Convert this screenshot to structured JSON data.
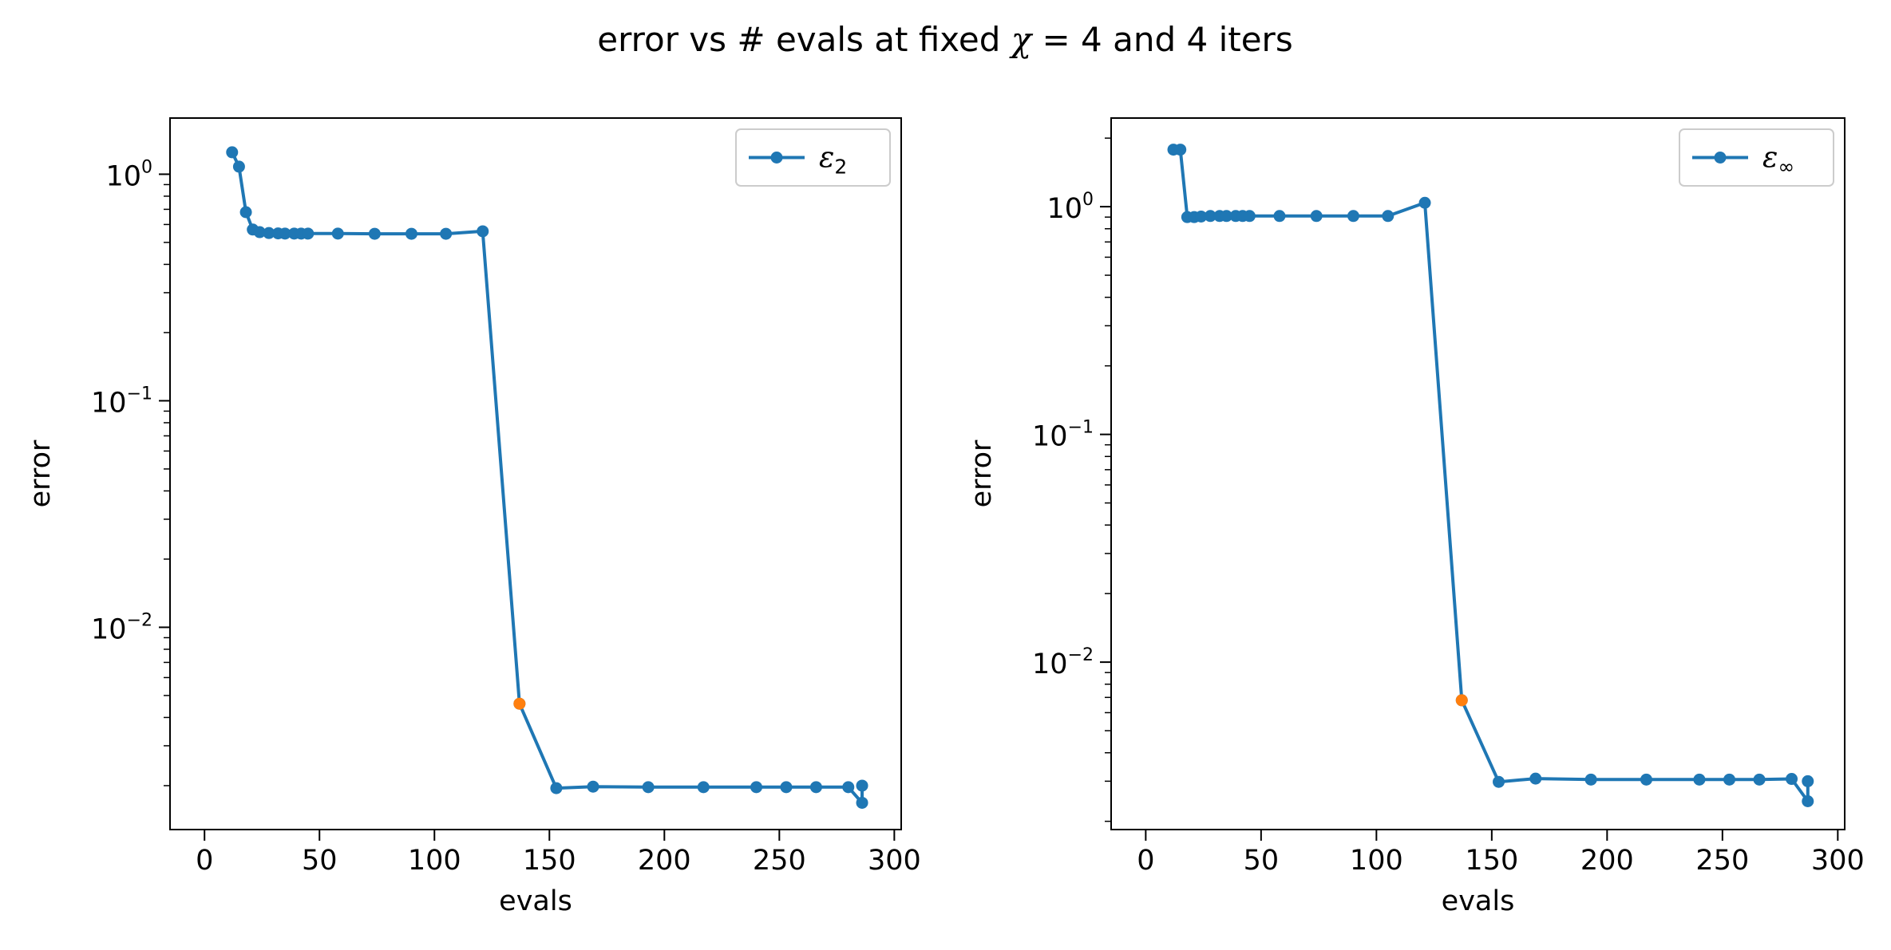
{
  "figure": {
    "title_main": "error vs # evals at fixed ",
    "title_chi": "χ",
    "title_eq": " = 4",
    "title_tail": " and 4 iters"
  },
  "chart_data": [
    {
      "type": "line",
      "xlabel": "evals",
      "ylabel": "error",
      "yscale": "log",
      "xlim": [
        -15,
        303
      ],
      "ylim": [
        0.00128,
        1.77
      ],
      "xticks": [
        0,
        50,
        100,
        150,
        200,
        250,
        300
      ],
      "xtick_labels": [
        "0",
        "50",
        "100",
        "150",
        "200",
        "250",
        "300"
      ],
      "yticks": [
        1,
        0.1,
        0.01
      ],
      "ytick_labels": [
        {
          "base": "10",
          "exp": "0"
        },
        {
          "base": "10",
          "exp": "−1"
        },
        {
          "base": "10",
          "exp": "−2"
        }
      ],
      "legend": {
        "symbol": "ε",
        "sub": "2",
        "position": "upper right"
      },
      "series": [
        {
          "name": "ε2",
          "color": "#1f77b4",
          "x": [
            12,
            15,
            18,
            21,
            24,
            28,
            32,
            35,
            39,
            42,
            45,
            58,
            74,
            90,
            105,
            121,
            137,
            153,
            169,
            193,
            217,
            240,
            253,
            266,
            280,
            286,
            286
          ],
          "y": [
            1.25,
            1.08,
            0.68,
            0.57,
            0.555,
            0.55,
            0.548,
            0.547,
            0.547,
            0.547,
            0.547,
            0.547,
            0.546,
            0.546,
            0.546,
            0.56,
            0.0046,
            0.00195,
            0.00198,
            0.00197,
            0.00197,
            0.00197,
            0.00197,
            0.00197,
            0.00197,
            0.00168,
            0.002
          ]
        },
        {
          "name": "highlight",
          "color": "#ff7f0e",
          "x": [
            137
          ],
          "y": [
            0.0046
          ]
        }
      ]
    },
    {
      "type": "line",
      "xlabel": "evals",
      "ylabel": "error",
      "yscale": "log",
      "xlim": [
        -15,
        303
      ],
      "ylim": [
        0.00184,
        2.45
      ],
      "xticks": [
        0,
        50,
        100,
        150,
        200,
        250,
        300
      ],
      "xtick_labels": [
        "0",
        "50",
        "100",
        "150",
        "200",
        "250",
        "300"
      ],
      "yticks": [
        1,
        0.1,
        0.01
      ],
      "ytick_labels": [
        {
          "base": "10",
          "exp": "0"
        },
        {
          "base": "10",
          "exp": "−1"
        },
        {
          "base": "10",
          "exp": "−2"
        }
      ],
      "legend": {
        "symbol": "ε",
        "sub": "∞",
        "position": "upper right"
      },
      "series": [
        {
          "name": "ε∞",
          "color": "#1f77b4",
          "x": [
            12,
            15,
            18,
            21,
            24,
            28,
            32,
            35,
            39,
            42,
            45,
            58,
            74,
            90,
            105,
            121,
            137,
            153,
            169,
            193,
            217,
            240,
            253,
            266,
            280,
            287,
            287
          ],
          "y": [
            1.78,
            1.78,
            0.9,
            0.9,
            0.905,
            0.91,
            0.91,
            0.91,
            0.91,
            0.91,
            0.91,
            0.91,
            0.91,
            0.91,
            0.91,
            1.04,
            0.0068,
            0.00298,
            0.00308,
            0.00305,
            0.00305,
            0.00305,
            0.00305,
            0.00305,
            0.00307,
            0.00245,
            0.003
          ]
        },
        {
          "name": "highlight",
          "color": "#ff7f0e",
          "x": [
            137
          ],
          "y": [
            0.0068
          ]
        }
      ]
    }
  ]
}
